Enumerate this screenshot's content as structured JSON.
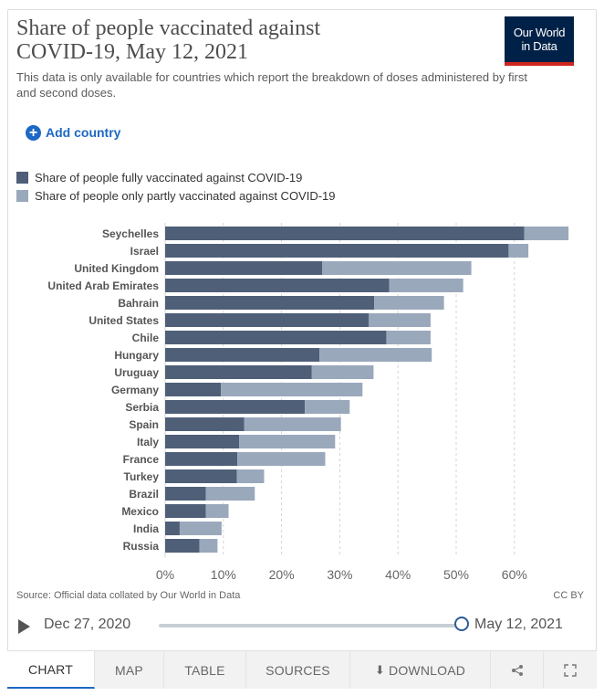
{
  "header": {
    "title": "Share of people vaccinated against\nCOVID-19, May 12, 2021",
    "subtitle": "This data is only available for countries which report the breakdown of doses administered by first and second doses.",
    "logo_line1": "Our World",
    "logo_line2": "in Data"
  },
  "controls": {
    "add_country_label": "Add country"
  },
  "colors": {
    "full": "#4f5f78",
    "partial": "#9aa8bb",
    "grid": "#d4d4d4",
    "accent": "#1d68c4",
    "logo_bg": "#002147",
    "logo_bar": "#ce261e"
  },
  "chart_data": {
    "type": "bar",
    "orientation": "horizontal",
    "stacked": true,
    "categories": [
      "Seychelles",
      "Israel",
      "United Kingdom",
      "United Arab Emirates",
      "Bahrain",
      "United States",
      "Chile",
      "Hungary",
      "Uruguay",
      "Germany",
      "Serbia",
      "Spain",
      "Italy",
      "France",
      "Turkey",
      "Brazil",
      "Mexico",
      "India",
      "Russia"
    ],
    "series": [
      {
        "name": "Share of people fully vaccinated against COVID-19",
        "values": [
          61.7,
          59.0,
          27.0,
          38.5,
          35.9,
          35.0,
          38.0,
          26.5,
          25.2,
          9.6,
          24.0,
          13.6,
          12.7,
          12.4,
          12.3,
          7.0,
          7.0,
          2.5,
          5.9
        ]
      },
      {
        "name": "Share of people only partly vaccinated against COVID-19",
        "values": [
          7.6,
          3.4,
          25.6,
          12.7,
          12.0,
          10.6,
          7.6,
          19.3,
          10.6,
          24.3,
          7.7,
          16.6,
          16.5,
          15.1,
          4.7,
          8.4,
          3.9,
          7.2,
          3.1
        ]
      }
    ],
    "xticks": [
      "0%",
      "10%",
      "20%",
      "30%",
      "40%",
      "50%",
      "60%"
    ],
    "xlim": [
      0,
      70
    ],
    "title": "Share of people vaccinated against COVID-19, May 12, 2021",
    "xlabel": "",
    "ylabel": "",
    "grid": true,
    "legend": "top-left"
  },
  "footer": {
    "source": "Source: Official data collated by Our World in Data",
    "license": "CC BY"
  },
  "timeline": {
    "start": "Dec 27, 2020",
    "end": "May 12, 2021",
    "position": 1.0
  },
  "tabs": [
    {
      "label": "CHART"
    },
    {
      "label": "MAP"
    },
    {
      "label": "TABLE"
    },
    {
      "label": "SOURCES"
    },
    {
      "label": "DOWNLOAD"
    },
    {
      "label": "share"
    },
    {
      "label": "fullscreen"
    }
  ]
}
